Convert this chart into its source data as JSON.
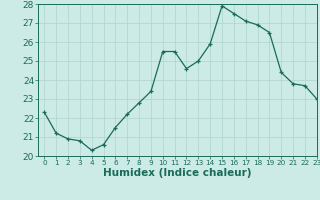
{
  "x": [
    0,
    1,
    2,
    3,
    4,
    5,
    6,
    7,
    8,
    9,
    10,
    11,
    12,
    13,
    14,
    15,
    16,
    17,
    18,
    19,
    20,
    21,
    22,
    23
  ],
  "y": [
    22.3,
    21.2,
    20.9,
    20.8,
    20.3,
    20.6,
    21.5,
    22.2,
    22.8,
    23.4,
    25.5,
    25.5,
    24.6,
    25.0,
    25.9,
    27.9,
    27.5,
    27.1,
    26.9,
    26.5,
    24.4,
    23.8,
    23.7,
    23.0
  ],
  "xlabel": "Humidex (Indice chaleur)",
  "ylim": [
    20,
    28
  ],
  "xlim": [
    -0.5,
    23
  ],
  "yticks": [
    20,
    21,
    22,
    23,
    24,
    25,
    26,
    27,
    28
  ],
  "xticks": [
    0,
    1,
    2,
    3,
    4,
    5,
    6,
    7,
    8,
    9,
    10,
    11,
    12,
    13,
    14,
    15,
    16,
    17,
    18,
    19,
    20,
    21,
    22,
    23
  ],
  "line_color": "#1a6b5a",
  "marker_color": "#1a6b5a",
  "bg_color": "#cceae6",
  "grid_color": "#b0d4cf",
  "axis_color": "#1a6b5a",
  "text_color": "#1a6b5a",
  "font_size": 6.5,
  "xlabel_fontsize": 7.5,
  "title": ""
}
